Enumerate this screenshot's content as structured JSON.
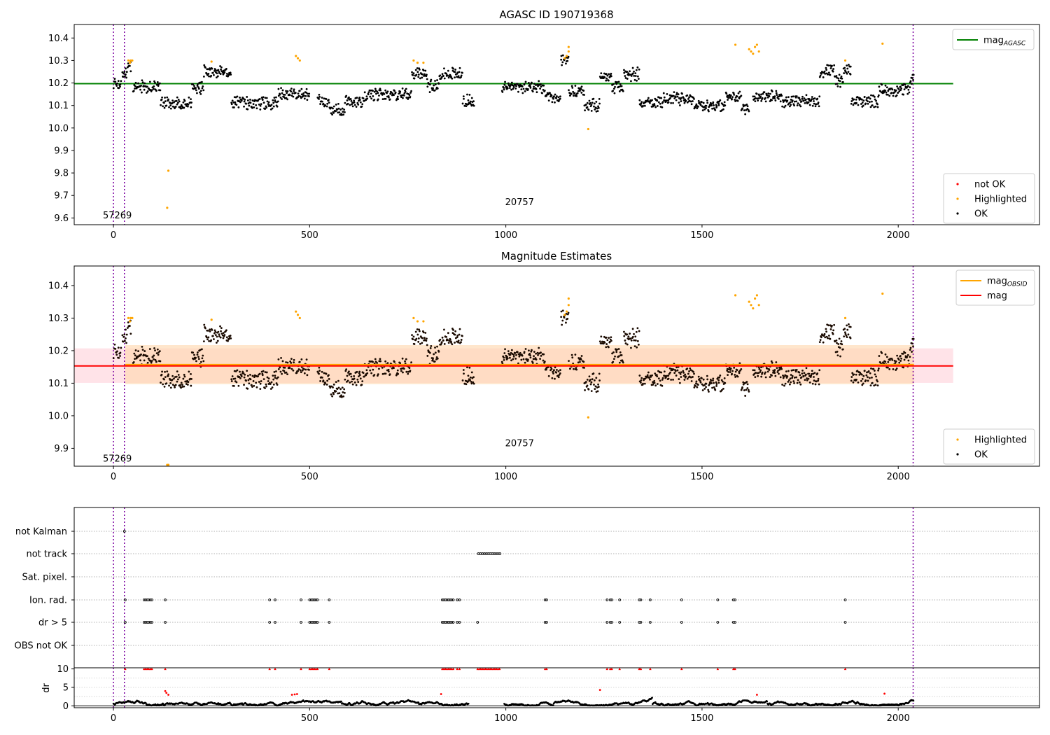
{
  "chart_data": [
    {
      "type": "scatter",
      "title": "AGASC ID 190719368",
      "xlim": [
        -100,
        2360
      ],
      "ylim": [
        9.57,
        10.46
      ],
      "x_ticks": [
        0,
        500,
        1000,
        1500,
        2000
      ],
      "y_ticks": [
        9.6,
        9.7,
        9.8,
        9.9,
        10.0,
        10.1,
        10.2,
        10.3,
        10.4
      ],
      "hlines": [
        {
          "name": "mag_AGASC",
          "y": 10.197,
          "x_range": [
            -100,
            2140
          ],
          "color": "#008000"
        }
      ],
      "vlines": [
        0,
        28,
        2038
      ],
      "annotations": [
        {
          "text": "57269",
          "x": 10,
          "y": 9.61
        },
        {
          "text": "20757",
          "x": 1035,
          "y": 9.67
        }
      ],
      "legends": [
        {
          "placement": "top-right",
          "entries": [
            {
              "label": "mag",
              "sub": "AGASC",
              "kind": "line",
              "color": "#008000"
            }
          ]
        },
        {
          "placement": "bottom-right",
          "entries": [
            {
              "label": "not OK",
              "kind": "marker",
              "color": "#ff0000"
            },
            {
              "label": "Highlighted",
              "kind": "marker",
              "color": "#ffa500"
            },
            {
              "label": "OK",
              "kind": "marker",
              "color": "#000000"
            }
          ]
        }
      ],
      "series": [
        {
          "name": "OK",
          "color": "#000000",
          "segments": [
            [
              0,
              20,
              10.2
            ],
            [
              22,
              35,
              10.24
            ],
            [
              36,
              45,
              10.27
            ],
            [
              50,
              120,
              10.18
            ],
            [
              120,
              200,
              10.11
            ],
            [
              200,
              230,
              10.18
            ],
            [
              230,
              300,
              10.25
            ],
            [
              300,
              420,
              10.11
            ],
            [
              420,
              500,
              10.15
            ],
            [
              520,
              550,
              10.12
            ],
            [
              550,
              590,
              10.08
            ],
            [
              590,
              640,
              10.12
            ],
            [
              640,
              760,
              10.15
            ],
            [
              760,
              800,
              10.24
            ],
            [
              800,
              830,
              10.19
            ],
            [
              830,
              890,
              10.24
            ],
            [
              890,
              920,
              10.12
            ],
            [
              990,
              1100,
              10.18
            ],
            [
              1100,
              1140,
              10.13
            ],
            [
              1140,
              1160,
              10.3
            ],
            [
              1160,
              1200,
              10.16
            ],
            [
              1200,
              1240,
              10.1
            ],
            [
              1240,
              1270,
              10.23
            ],
            [
              1270,
              1300,
              10.18
            ],
            [
              1300,
              1340,
              10.24
            ],
            [
              1340,
              1400,
              10.11
            ],
            [
              1400,
              1480,
              10.13
            ],
            [
              1480,
              1560,
              10.1
            ],
            [
              1560,
              1600,
              10.14
            ],
            [
              1600,
              1620,
              10.08
            ],
            [
              1630,
              1700,
              10.14
            ],
            [
              1700,
              1800,
              10.12
            ],
            [
              1800,
              1840,
              10.25
            ],
            [
              1840,
              1860,
              10.21
            ],
            [
              1860,
              1880,
              10.25
            ],
            [
              1880,
              1950,
              10.12
            ],
            [
              1950,
              2030,
              10.17
            ],
            [
              2030,
              2040,
              10.22
            ]
          ]
        },
        {
          "name": "Highlighted",
          "color": "#ffa500",
          "points": [
            [
              38,
              10.3
            ],
            [
              42,
              10.29
            ],
            [
              44,
              10.3
            ],
            [
              48,
              10.3
            ],
            [
              140,
              9.81
            ],
            [
              137,
              9.645
            ],
            [
              250,
              10.295
            ],
            [
              465,
              10.32
            ],
            [
              470,
              10.31
            ],
            [
              475,
              10.3
            ],
            [
              765,
              10.3
            ],
            [
              775,
              10.29
            ],
            [
              790,
              10.29
            ],
            [
              1150,
              10.31
            ],
            [
              1155,
              10.32
            ],
            [
              1160,
              10.34
            ],
            [
              1160,
              10.36
            ],
            [
              1210,
              9.995
            ],
            [
              1585,
              10.37
            ],
            [
              1620,
              10.35
            ],
            [
              1625,
              10.34
            ],
            [
              1630,
              10.33
            ],
            [
              1635,
              10.36
            ],
            [
              1640,
              10.37
            ],
            [
              1645,
              10.34
            ],
            [
              1865,
              10.3
            ],
            [
              1960,
              10.375
            ]
          ]
        }
      ]
    },
    {
      "type": "scatter",
      "title": "Magnitude Estimates",
      "xlim": [
        -100,
        2360
      ],
      "ylim": [
        9.845,
        10.46
      ],
      "x_ticks": [
        0,
        500,
        1000,
        1500,
        2000
      ],
      "y_ticks": [
        9.9,
        10.0,
        10.1,
        10.2,
        10.3,
        10.4
      ],
      "hlines": [
        {
          "name": "mag_OBSID",
          "y": 10.157,
          "x_range": [
            30,
            2040
          ],
          "color": "#ffa500"
        },
        {
          "name": "mag",
          "y": 10.153,
          "x_range": [
            -100,
            2140
          ],
          "color": "#ff0000"
        }
      ],
      "bands": [
        {
          "y_range": [
            10.101,
            10.207
          ],
          "x_range": [
            -100,
            2140
          ],
          "color": "#ffc0cb"
        },
        {
          "y_range": [
            10.097,
            10.217
          ],
          "x_range": [
            30,
            2040
          ],
          "color": "#ffd8b0"
        }
      ],
      "vlines": [
        0,
        28,
        2038
      ],
      "annotations": [
        {
          "text": "57269",
          "x": 10,
          "y": 9.868
        },
        {
          "text": "20757",
          "x": 1035,
          "y": 9.915
        }
      ],
      "legends": [
        {
          "placement": "top-right",
          "entries": [
            {
              "label": "mag",
              "sub": "OBSID",
              "kind": "line",
              "color": "#ffa500"
            },
            {
              "label": "mag",
              "kind": "line",
              "color": "#ff0000"
            }
          ]
        },
        {
          "placement": "bottom-right",
          "entries": [
            {
              "label": "Highlighted",
              "kind": "marker",
              "color": "#ffa500"
            },
            {
              "label": "OK",
              "kind": "marker",
              "color": "#000000"
            }
          ]
        }
      ]
    },
    {
      "type": "scatter",
      "title": "",
      "xlim": [
        -100,
        2360
      ],
      "categories": [
        "not Kalman",
        "not track",
        "Sat. pixel.",
        "Ion. rad.",
        "dr > 5",
        "OBS not OK"
      ],
      "flag_points": {
        "not Kalman": [
          28
        ],
        "not track": [
          930,
          935,
          940,
          945,
          950,
          955,
          960,
          965,
          970,
          975,
          980,
          985
        ],
        "Sat. pixel.": [],
        "Ion. rad.": [
          30,
          78,
          82,
          86,
          90,
          94,
          98,
          132,
          398,
          412,
          478,
          500,
          504,
          508,
          512,
          516,
          520,
          550,
          838,
          842,
          846,
          850,
          854,
          858,
          862,
          866,
          876,
          882,
          1100,
          1104,
          1258,
          1266,
          1270,
          1290,
          1340,
          1344,
          1368,
          1448,
          1540,
          1580,
          1584,
          1865
        ],
        "dr > 5": [
          30,
          78,
          82,
          86,
          90,
          94,
          98,
          132,
          398,
          412,
          478,
          500,
          504,
          508,
          512,
          516,
          520,
          550,
          838,
          842,
          846,
          850,
          854,
          858,
          862,
          866,
          876,
          882,
          928,
          1100,
          1104,
          1258,
          1266,
          1270,
          1290,
          1340,
          1344,
          1368,
          1448,
          1540,
          1580,
          1584,
          1865
        ],
        "OBS not OK": []
      },
      "vlines": [
        0,
        28,
        2038
      ]
    },
    {
      "type": "scatter",
      "title": "",
      "ylabel": "dr",
      "xlim": [
        -100,
        2360
      ],
      "ylim": [
        -0.5,
        10.3
      ],
      "x_ticks": [
        0,
        500,
        1000,
        1500,
        2000
      ],
      "y_ticks": [
        0,
        5,
        10
      ],
      "hlines": [
        {
          "y": 0
        },
        {
          "y": 10.3
        }
      ],
      "vlines": [
        0,
        28,
        2038
      ],
      "red_markers_x": [
        30,
        78,
        82,
        86,
        90,
        94,
        98,
        132,
        398,
        412,
        478,
        500,
        504,
        508,
        512,
        516,
        520,
        550,
        838,
        842,
        846,
        850,
        854,
        858,
        862,
        866,
        876,
        882,
        928,
        932,
        936,
        940,
        944,
        948,
        952,
        956,
        960,
        964,
        968,
        972,
        976,
        980,
        984,
        1100,
        1104,
        1258,
        1266,
        1270,
        1290,
        1340,
        1344,
        1368,
        1448,
        1540,
        1580,
        1584,
        1865
      ],
      "red_points": [
        [
          132,
          4.0
        ],
        [
          135,
          3.5
        ],
        [
          140,
          3.0
        ],
        [
          455,
          3.0
        ],
        [
          462,
          3.1
        ],
        [
          468,
          3.2
        ],
        [
          835,
          3.2
        ],
        [
          1240,
          4.3
        ],
        [
          1640,
          3.0
        ],
        [
          1965,
          3.3
        ]
      ]
    }
  ]
}
